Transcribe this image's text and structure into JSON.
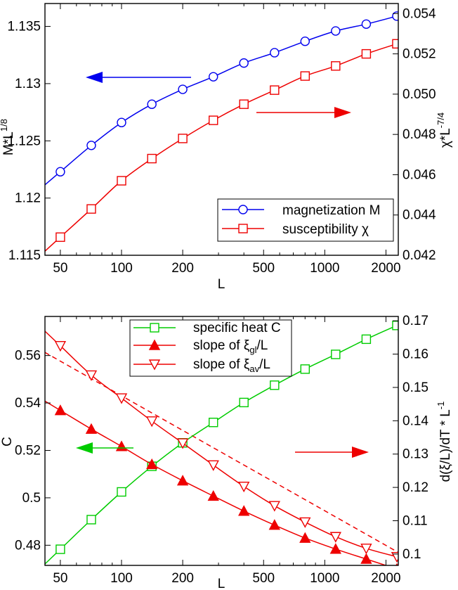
{
  "chart_data": [
    {
      "type": "line",
      "panel": "top",
      "xlabel": "L",
      "ylabel_left": "M*L",
      "ylabel_left_sup": "1/8",
      "ylabel_right": "χ*L",
      "ylabel_right_sup": "-7/4",
      "xscale": "log",
      "xlim": [
        42,
        2300
      ],
      "ylim_left": [
        1.115,
        1.137
      ],
      "ylim_right": [
        0.042,
        0.0545
      ],
      "x_ticks": [
        50,
        100,
        200,
        500,
        1000,
        2000
      ],
      "x_tick_labels": [
        "50",
        "100",
        "200",
        "500",
        "1000",
        "2000"
      ],
      "y_left_ticks": [
        1.115,
        1.12,
        1.125,
        1.13,
        1.135
      ],
      "y_left_tick_labels": [
        "1.115",
        "1.12",
        "1.125",
        "1.13",
        "1.135"
      ],
      "y_right_ticks": [
        0.042,
        0.044,
        0.046,
        0.048,
        0.05,
        0.052,
        0.054
      ],
      "y_right_tick_labels": [
        "0.042",
        "0.044",
        "0.046",
        "0.048",
        "0.050",
        "0.052",
        "0.054"
      ],
      "legend_position": "bottom-right",
      "series": [
        {
          "name": "magnetization M",
          "axis": "left",
          "marker": "circle",
          "color": "#0000ee",
          "x": [
            50,
            71,
            100,
            141,
            200,
            283,
            400,
            566,
            800,
            1131,
            1600,
            2263
          ],
          "y": [
            1.1223,
            1.1246,
            1.1266,
            1.1282,
            1.1295,
            1.1306,
            1.1318,
            1.1327,
            1.1337,
            1.1346,
            1.1352,
            1.1359
          ]
        },
        {
          "name": "susceptibility χ",
          "axis": "right",
          "marker": "square",
          "color": "#ee0000",
          "x": [
            50,
            71,
            100,
            141,
            200,
            283,
            400,
            566,
            800,
            1131,
            1600,
            2263
          ],
          "y": [
            0.0429,
            0.0443,
            0.0457,
            0.0468,
            0.0478,
            0.0487,
            0.0495,
            0.0502,
            0.0509,
            0.0514,
            0.052,
            0.0525
          ]
        }
      ],
      "annotations": [
        {
          "type": "arrow",
          "direction": "left",
          "color": "#0000ee",
          "refers_to": "left axis"
        },
        {
          "type": "arrow",
          "direction": "right",
          "color": "#ee0000",
          "refers_to": "right axis"
        }
      ]
    },
    {
      "type": "line",
      "panel": "bottom",
      "xlabel": "L",
      "ylabel_left": "C",
      "ylabel_right_pre": "d(ξ/L)/dT * L",
      "ylabel_right_sup": "-1",
      "xscale": "log",
      "xlim": [
        42,
        2300
      ],
      "ylim_left": [
        0.4715,
        0.5765
      ],
      "ylim_right": [
        0.0966,
        0.1713
      ],
      "x_ticks": [
        50,
        100,
        200,
        500,
        1000,
        2000
      ],
      "x_tick_labels": [
        "50",
        "100",
        "200",
        "500",
        "1000",
        "2000"
      ],
      "y_left_ticks": [
        0.48,
        0.5,
        0.52,
        0.54,
        0.56
      ],
      "y_left_tick_labels": [
        "0.48",
        "0.5",
        "0.52",
        "0.54",
        "0.56"
      ],
      "y_right_ticks": [
        0.1,
        0.11,
        0.12,
        0.13,
        0.14,
        0.15,
        0.16,
        0.17
      ],
      "y_right_tick_labels": [
        "0.1",
        "0.11",
        "0.12",
        "0.13",
        "0.14",
        "0.15",
        "0.16",
        "0.17"
      ],
      "legend_position": "top-center",
      "series": [
        {
          "name": "specific heat C",
          "axis": "left",
          "marker": "square",
          "color": "#00cc00",
          "x": [
            50,
            71,
            100,
            141,
            200,
            283,
            400,
            566,
            800,
            1131,
            1600,
            2263
          ],
          "y": [
            0.4783,
            0.4908,
            0.5025,
            0.5133,
            0.5232,
            0.5318,
            0.5402,
            0.5475,
            0.5543,
            0.5605,
            0.5669,
            0.5727
          ]
        },
        {
          "name_pre": "slope of ξ",
          "name_sub": "gl",
          "name_post": "/L",
          "axis": "right",
          "marker": "triangle-up",
          "filled": true,
          "color": "#ee0000",
          "x": [
            50,
            71,
            100,
            141,
            200,
            283,
            400,
            566,
            800,
            1131,
            1600,
            2263
          ],
          "y": [
            0.1431,
            0.1375,
            0.1323,
            0.1269,
            0.122,
            0.1174,
            0.1129,
            0.1087,
            0.1048,
            0.1015,
            0.0985,
            0.0955
          ]
        },
        {
          "name_pre": "slope of ξ",
          "name_sub": "av",
          "name_post": "/L",
          "axis": "right",
          "marker": "triangle-down",
          "filled": false,
          "color": "#ee0000",
          "x": [
            50,
            71,
            100,
            141,
            200,
            283,
            400,
            566,
            800,
            1131,
            1600,
            2263
          ],
          "y": [
            0.1625,
            0.1537,
            0.1468,
            0.1399,
            0.1333,
            0.1267,
            0.1203,
            0.1145,
            0.1096,
            0.1052,
            0.1017,
            0.0992
          ]
        }
      ],
      "annotations": [
        {
          "type": "arrow",
          "direction": "left",
          "color": "#00cc00",
          "refers_to": "left axis"
        },
        {
          "type": "arrow",
          "direction": "right",
          "color": "#ee0000",
          "refers_to": "right axis"
        },
        {
          "type": "dashed-line",
          "color": "#ee0000",
          "style": "dashed",
          "x": [
            42,
            2300
          ],
          "y": [
            0.1605,
            0.1005
          ]
        }
      ]
    }
  ]
}
